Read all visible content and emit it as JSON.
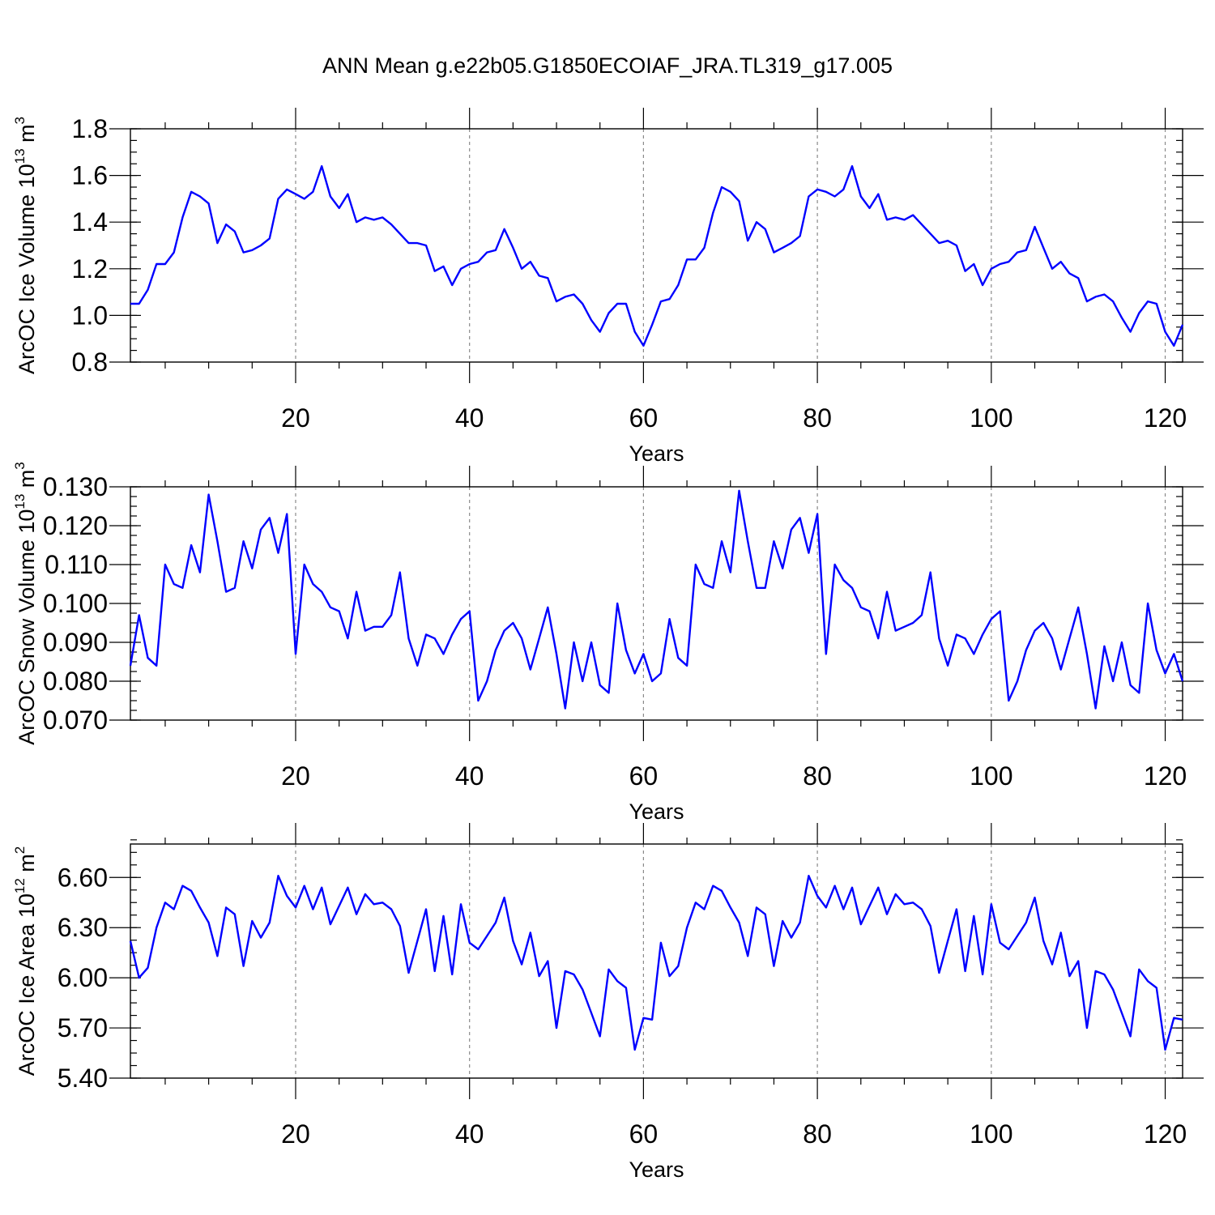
{
  "title": "ANN Mean g.e22b05.G1850ECOIAF_JRA.TL319_g17.005",
  "chart_data": [
    {
      "type": "line",
      "ylabel": "ArcOC Ice Volume 10",
      "ylabel_exp": "13",
      "ylabel_unit": " m",
      "ylabel_unit_exp": "3",
      "xlabel": "Years",
      "xlim": [
        1,
        122
      ],
      "ylim": [
        0.8,
        1.8
      ],
      "xticks": [
        20,
        40,
        60,
        80,
        100,
        120
      ],
      "xtick_labels": [
        "20",
        "40",
        "60",
        "80",
        "100",
        "120"
      ],
      "yticks": [
        0.8,
        1.0,
        1.2,
        1.4,
        1.6,
        1.8
      ],
      "ytick_labels": [
        "0.8",
        "1.0",
        "1.2",
        "1.4",
        "1.6",
        "1.8"
      ],
      "y_minor_step": 0.05,
      "x_minor_step": 5,
      "gridlines_x": [
        20,
        40,
        60,
        80,
        100,
        120
      ],
      "color": "#0000ff",
      "x_start": 1,
      "values": [
        1.05,
        1.05,
        1.11,
        1.22,
        1.22,
        1.27,
        1.42,
        1.53,
        1.51,
        1.48,
        1.31,
        1.39,
        1.36,
        1.27,
        1.28,
        1.3,
        1.33,
        1.5,
        1.54,
        1.52,
        1.5,
        1.53,
        1.64,
        1.51,
        1.46,
        1.52,
        1.4,
        1.42,
        1.41,
        1.42,
        1.39,
        1.35,
        1.31,
        1.31,
        1.3,
        1.19,
        1.21,
        1.13,
        1.2,
        1.22,
        1.23,
        1.27,
        1.28,
        1.37,
        1.29,
        1.2,
        1.23,
        1.17,
        1.16,
        1.06,
        1.08,
        1.09,
        1.05,
        0.98,
        0.93,
        1.01,
        1.05,
        1.05,
        0.93,
        0.87,
        0.96,
        1.06,
        1.07,
        1.13,
        1.24,
        1.24,
        1.29,
        1.44,
        1.55,
        1.53,
        1.49,
        1.32,
        1.4,
        1.37,
        1.27,
        1.29,
        1.31,
        1.34,
        1.51,
        1.54,
        1.53,
        1.51,
        1.54,
        1.64,
        1.51,
        1.46,
        1.52,
        1.41,
        1.42,
        1.41,
        1.43,
        1.39,
        1.35,
        1.31,
        1.32,
        1.3,
        1.19,
        1.22,
        1.13,
        1.2,
        1.22,
        1.23,
        1.27,
        1.28,
        1.38,
        1.29,
        1.2,
        1.23,
        1.18,
        1.16,
        1.06,
        1.08,
        1.09,
        1.06,
        0.99,
        0.93,
        1.01,
        1.06,
        1.05,
        0.93,
        0.87,
        0.96
      ]
    },
    {
      "type": "line",
      "ylabel": "ArcOC Snow Volume 10",
      "ylabel_exp": "13",
      "ylabel_unit": " m",
      "ylabel_unit_exp": "3",
      "xlabel": "Years",
      "xlim": [
        1,
        122
      ],
      "ylim": [
        0.07,
        0.13
      ],
      "xticks": [
        20,
        40,
        60,
        80,
        100,
        120
      ],
      "xtick_labels": [
        "20",
        "40",
        "60",
        "80",
        "100",
        "120"
      ],
      "yticks": [
        0.07,
        0.08,
        0.09,
        0.1,
        0.11,
        0.12,
        0.13
      ],
      "ytick_labels": [
        "0.070",
        "0.080",
        "0.090",
        "0.100",
        "0.110",
        "0.120",
        "0.130"
      ],
      "y_minor_step": 0.0025,
      "x_minor_step": 5,
      "gridlines_x": [
        20,
        40,
        60,
        80,
        100,
        120
      ],
      "color": "#0000ff",
      "x_start": 1,
      "values": [
        0.084,
        0.097,
        0.086,
        0.084,
        0.11,
        0.105,
        0.104,
        0.115,
        0.108,
        0.128,
        0.116,
        0.103,
        0.104,
        0.116,
        0.109,
        0.119,
        0.122,
        0.113,
        0.123,
        0.087,
        0.11,
        0.105,
        0.103,
        0.099,
        0.098,
        0.091,
        0.103,
        0.093,
        0.094,
        0.094,
        0.097,
        0.108,
        0.091,
        0.084,
        0.092,
        0.091,
        0.087,
        0.092,
        0.096,
        0.098,
        0.075,
        0.08,
        0.088,
        0.093,
        0.095,
        0.091,
        0.083,
        0.091,
        0.099,
        0.087,
        0.073,
        0.09,
        0.08,
        0.09,
        0.079,
        0.077,
        0.1,
        0.088,
        0.082,
        0.087,
        0.08,
        0.082,
        0.096,
        0.086,
        0.084,
        0.11,
        0.105,
        0.104,
        0.116,
        0.108,
        0.129,
        0.116,
        0.104,
        0.104,
        0.116,
        0.109,
        0.119,
        0.122,
        0.113,
        0.123,
        0.087,
        0.11,
        0.106,
        0.104,
        0.099,
        0.098,
        0.091,
        0.103,
        0.093,
        0.094,
        0.095,
        0.097,
        0.108,
        0.091,
        0.084,
        0.092,
        0.091,
        0.087,
        0.092,
        0.096,
        0.098,
        0.075,
        0.08,
        0.088,
        0.093,
        0.095,
        0.091,
        0.083,
        0.091,
        0.099,
        0.087,
        0.073,
        0.089,
        0.08,
        0.09,
        0.079,
        0.077,
        0.1,
        0.088,
        0.082,
        0.087,
        0.08
      ]
    },
    {
      "type": "line",
      "ylabel": "ArcOC Ice Area 10",
      "ylabel_exp": "12",
      "ylabel_unit": " m",
      "ylabel_unit_exp": "2",
      "xlabel": "Years",
      "xlim": [
        1,
        122
      ],
      "ylim": [
        5.4,
        6.8
      ],
      "xticks": [
        20,
        40,
        60,
        80,
        100,
        120
      ],
      "xtick_labels": [
        "20",
        "40",
        "60",
        "80",
        "100",
        "120"
      ],
      "yticks": [
        5.4,
        5.7,
        6.0,
        6.3,
        6.6
      ],
      "ytick_labels": [
        "5.40",
        "5.70",
        "6.00",
        "6.30",
        "6.60"
      ],
      "y_minor_step": 0.075,
      "x_minor_step": 5,
      "gridlines_x": [
        20,
        40,
        60,
        80,
        100,
        120
      ],
      "color": "#0000ff",
      "x_start": 1,
      "values": [
        6.22,
        6.0,
        6.06,
        6.3,
        6.45,
        6.41,
        6.55,
        6.52,
        6.42,
        6.33,
        6.13,
        6.42,
        6.38,
        6.07,
        6.34,
        6.24,
        6.33,
        6.61,
        6.49,
        6.42,
        6.55,
        6.41,
        6.54,
        6.32,
        6.43,
        6.54,
        6.38,
        6.5,
        6.44,
        6.45,
        6.41,
        6.31,
        6.03,
        6.22,
        6.41,
        6.04,
        6.37,
        6.02,
        6.44,
        6.21,
        6.17,
        6.25,
        6.33,
        6.48,
        6.22,
        6.08,
        6.27,
        6.01,
        6.1,
        5.7,
        6.04,
        6.02,
        5.93,
        5.79,
        5.65,
        6.05,
        5.98,
        5.94,
        5.57,
        5.76,
        5.75,
        6.21,
        6.01,
        6.07,
        6.3,
        6.45,
        6.41,
        6.55,
        6.52,
        6.42,
        6.33,
        6.13,
        6.42,
        6.38,
        6.07,
        6.34,
        6.24,
        6.33,
        6.61,
        6.49,
        6.42,
        6.55,
        6.41,
        6.54,
        6.32,
        6.43,
        6.54,
        6.38,
        6.5,
        6.44,
        6.45,
        6.41,
        6.31,
        6.03,
        6.22,
        6.41,
        6.04,
        6.37,
        6.02,
        6.44,
        6.21,
        6.17,
        6.25,
        6.33,
        6.48,
        6.22,
        6.08,
        6.27,
        6.01,
        6.1,
        5.7,
        6.04,
        6.02,
        5.93,
        5.79,
        5.65,
        6.05,
        5.98,
        5.94,
        5.57,
        5.76,
        5.75
      ]
    }
  ]
}
